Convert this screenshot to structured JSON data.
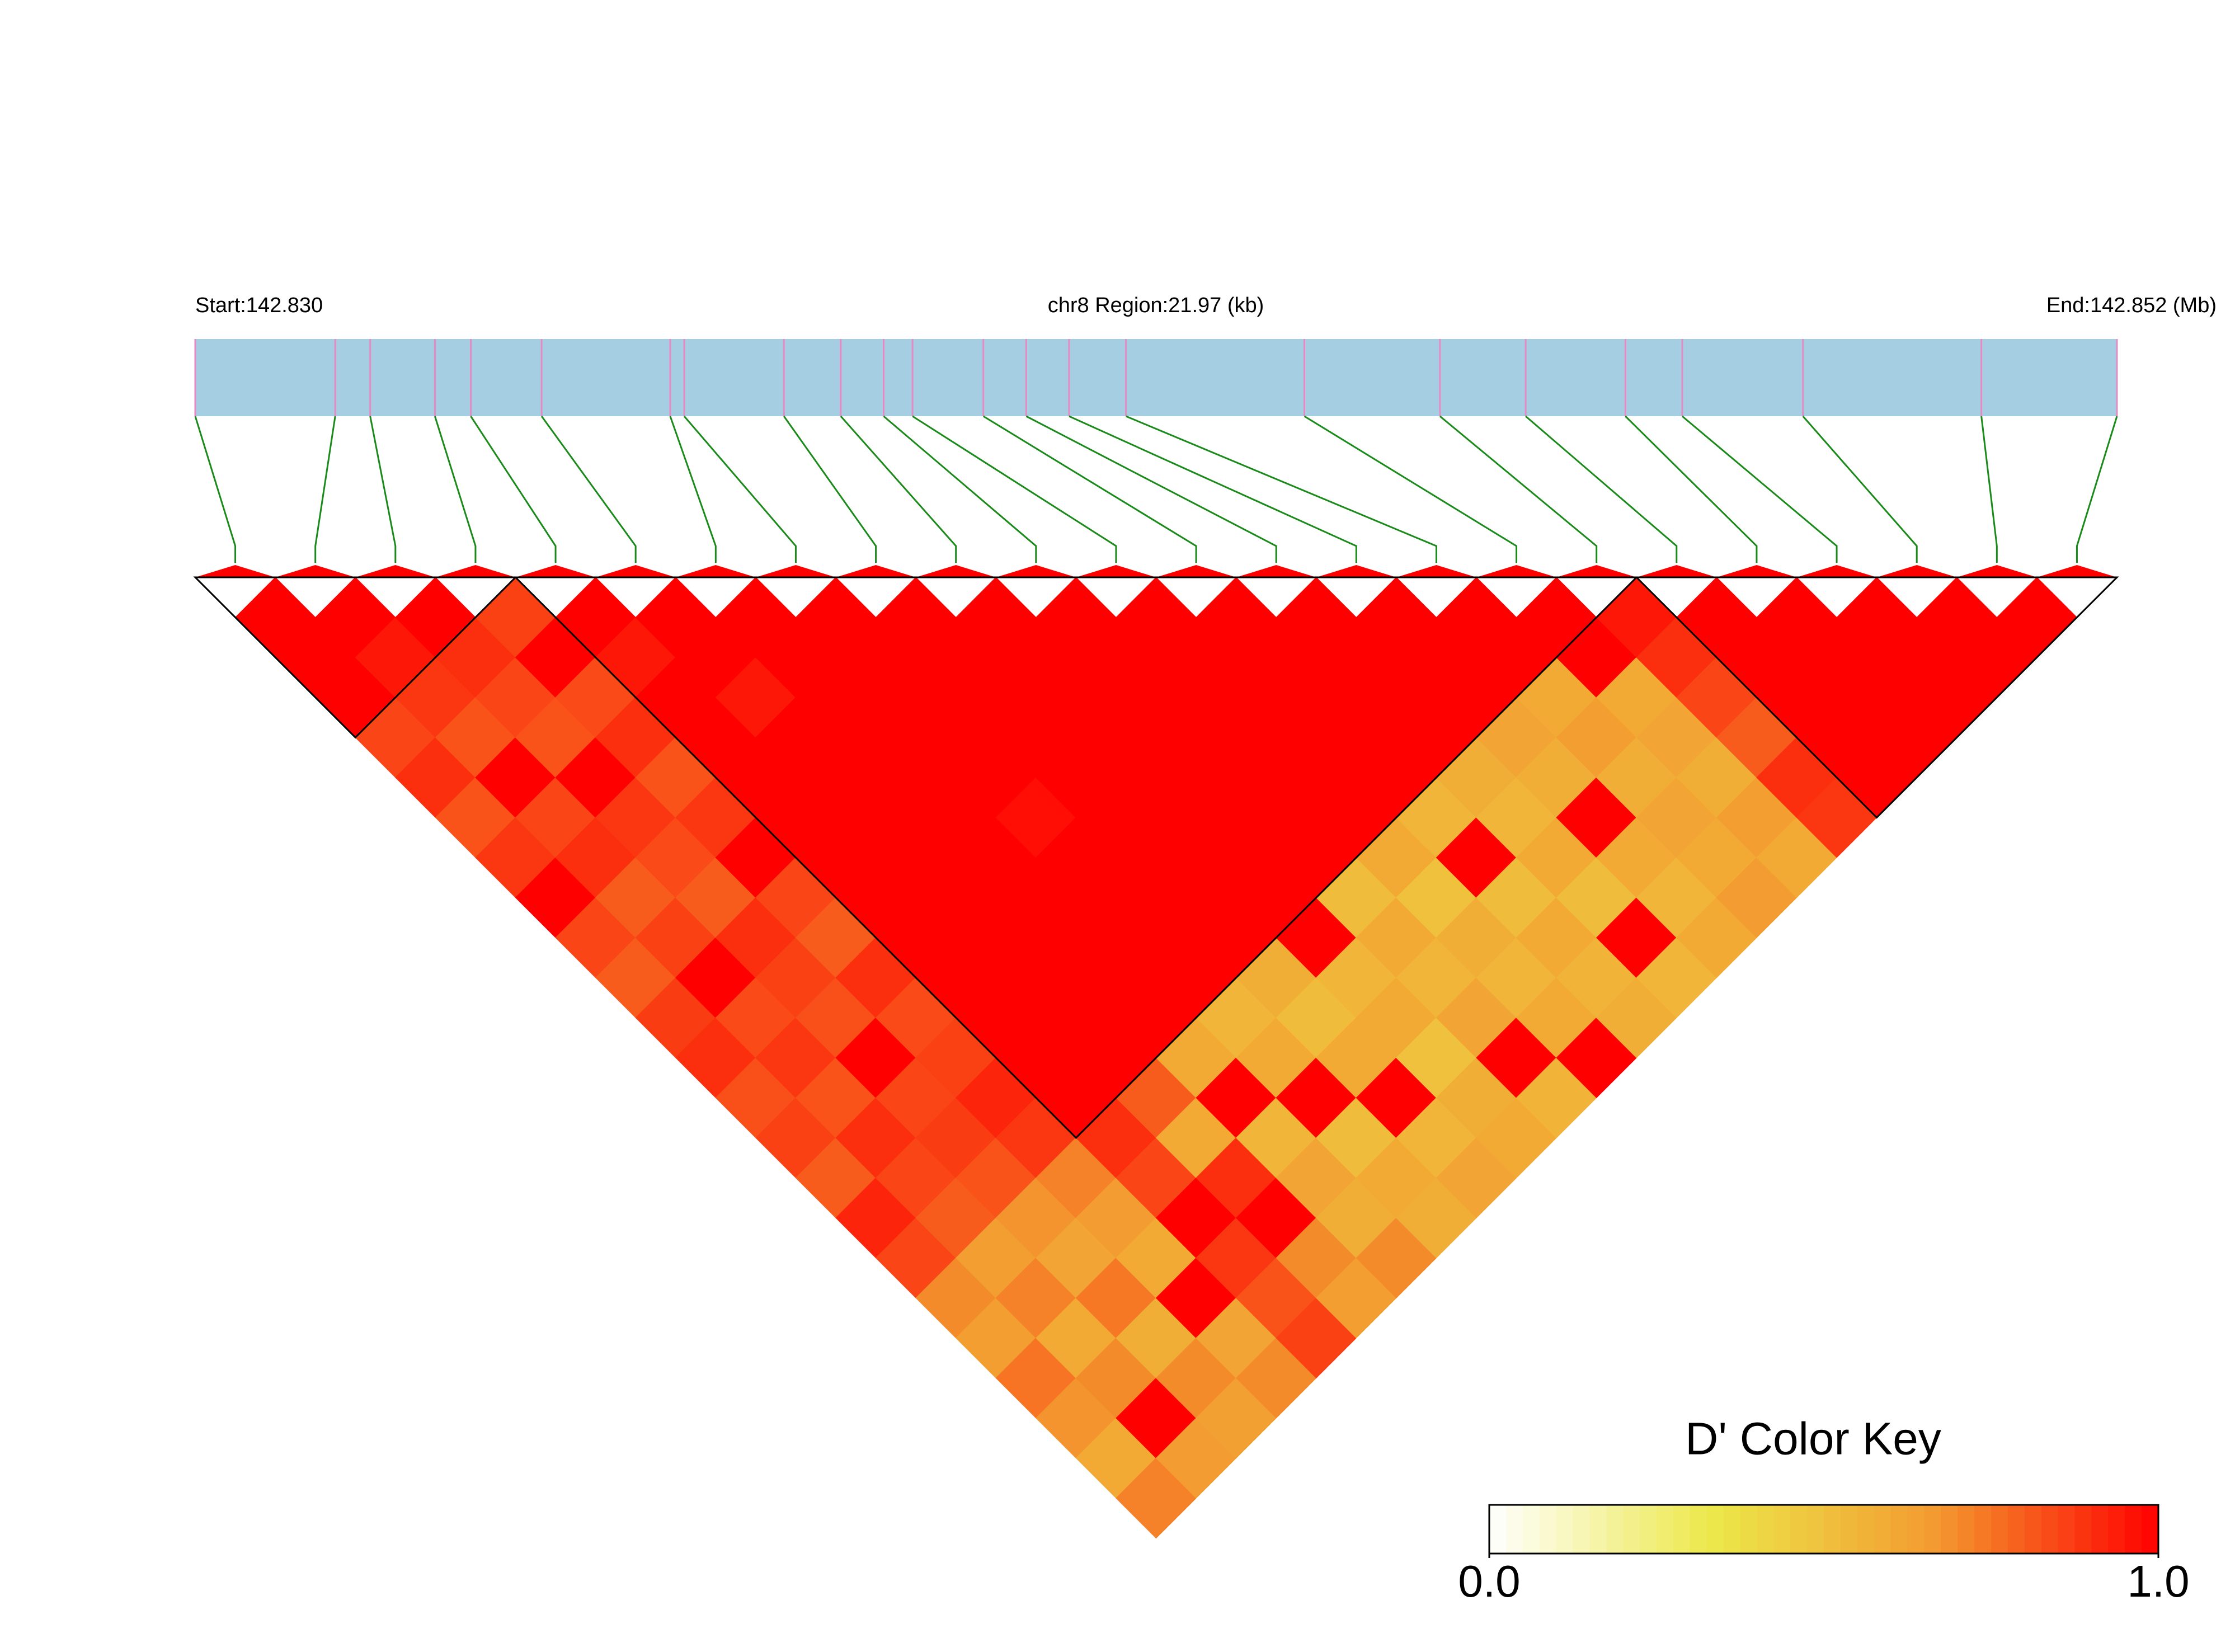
{
  "chart_data": {
    "type": "ld-heatmap",
    "start_label": "Start:142.830",
    "region_label": "chr8 Region:21.97 (kb)",
    "end_label": "End:142.852 (Mb)",
    "key_title": "D' Color Key",
    "xlim": [
      0,
      21.97
    ],
    "snp_positions": [
      0,
      1.6,
      2.0,
      2.74,
      3.15,
      3.96,
      5.43,
      5.59,
      6.73,
      7.38,
      7.87,
      8.2,
      9.01,
      9.5,
      9.99,
      10.64,
      12.68,
      14.23,
      15.21,
      16.35,
      17.0,
      18.38,
      20.42,
      21.97
    ],
    "matrix": [
      [
        1,
        1,
        1,
        0.85,
        0.9,
        0.82,
        0.88,
        1,
        0.85,
        0.8,
        0.87,
        0.9,
        0.83,
        0.86,
        0.8,
        0.92,
        0.85,
        0.7,
        0.65,
        0.75,
        0.68,
        0.6,
        0.72
      ],
      [
        1,
        0.95,
        0.88,
        0.82,
        1,
        0.85,
        0.9,
        0.8,
        0.86,
        1,
        0.84,
        0.88,
        0.82,
        0.9,
        0.85,
        0.8,
        0.65,
        0.72,
        0.6,
        0.7,
        1,
        0.66
      ],
      [
        1,
        0.9,
        0.85,
        0.82,
        1,
        0.88,
        0.84,
        0.8,
        0.9,
        0.86,
        0.83,
        1,
        0.85,
        0.87,
        0.82,
        0.68,
        0.62,
        0.74,
        0.58,
        0.7,
        0.64
      ],
      [
        0.86,
        1,
        0.84,
        0.9,
        0.82,
        0.88,
        1,
        0.85,
        0.8,
        0.9,
        0.84,
        0.86,
        0.92,
        0.88,
        0.72,
        0.66,
        0.6,
        1,
        0.62,
        0.7
      ],
      [
        1,
        0.95,
        1,
        1,
        1,
        1,
        1,
        1,
        1,
        1,
        1,
        1,
        1,
        0.9,
        0.85,
        1,
        0.88,
        0.82,
        0.86
      ],
      [
        1,
        1,
        0.95,
        1,
        1,
        1,
        1,
        1,
        1,
        1,
        1,
        1,
        0.8,
        0.6,
        0.9,
        1,
        0.7,
        0.65
      ],
      [
        1,
        1,
        1,
        1,
        1,
        1,
        1,
        1,
        1,
        1,
        1,
        0.6,
        1,
        0.55,
        0.62,
        0.58,
        0.7
      ],
      [
        1,
        1,
        1,
        1,
        1,
        0.97,
        1,
        1,
        1,
        1,
        0.55,
        0.6,
        1,
        0.52,
        0.6,
        0.58
      ],
      [
        1,
        1,
        1,
        1,
        1,
        1,
        1,
        1,
        1,
        0.58,
        0.52,
        0.6,
        1,
        0.55,
        0.62
      ],
      [
        1,
        1,
        1,
        1,
        1,
        1,
        1,
        1,
        1,
        0.55,
        0.6,
        0.5,
        0.58,
        0.6
      ],
      [
        1,
        1,
        1,
        1,
        1,
        1,
        1,
        0.52,
        0.6,
        0.55,
        0.62,
        1,
        0.56
      ],
      [
        1,
        1,
        1,
        1,
        1,
        1,
        0.6,
        0.5,
        0.58,
        0.55,
        0.6,
        1
      ],
      [
        1,
        1,
        1,
        1,
        1,
        0.55,
        1,
        0.52,
        0.6,
        0.56,
        0.58
      ],
      [
        1,
        1,
        1,
        1,
        0.58,
        0.55,
        0.6,
        0.52,
        1,
        0.55
      ],
      [
        1,
        1,
        1,
        0.62,
        0.58,
        1,
        0.6,
        0.55,
        0.6
      ],
      [
        1,
        1,
        0.6,
        0.65,
        0.58,
        0.62,
        0.6,
        0.66
      ],
      [
        1,
        1,
        0.6,
        0.62,
        0.58,
        0.65,
        0.6
      ],
      [
        0.95,
        0.9,
        0.85,
        0.8,
        0.9,
        0.88
      ],
      [
        1,
        1,
        1,
        1,
        1
      ],
      [
        1,
        1,
        1,
        1
      ],
      [
        1,
        1,
        1
      ],
      [
        1,
        1
      ],
      [
        1
      ]
    ],
    "blocks": [
      [
        0,
        3
      ],
      [
        4,
        17
      ],
      [
        18,
        23
      ]
    ],
    "colorscale": [
      "#ffffff",
      "#ece84a",
      "#f39a30",
      "#ff0000"
    ],
    "clim": [
      0,
      1
    ],
    "key_ticks": [
      {
        "value": 0,
        "label": "0.0"
      },
      {
        "value": 1,
        "label": "1.0"
      }
    ],
    "bar_color": "#a6cee3",
    "snp_line_color": "#e78ac3",
    "link_color": "#1a8a1a"
  }
}
